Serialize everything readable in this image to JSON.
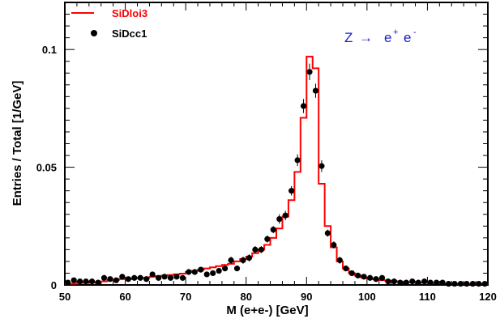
{
  "chart_data": {
    "type": "line",
    "xlabel": "M (e+e-) [GeV]",
    "ylabel": "Entries / Total  [1/GeV]",
    "xlim": [
      50,
      120
    ],
    "ylim": [
      0,
      0.12
    ],
    "x_ticks": [
      "50",
      "60",
      "70",
      "80",
      "90",
      "100",
      "110",
      "120"
    ],
    "y_ticks": [
      "0",
      "0.05",
      "0.1"
    ],
    "legend_position": "top-left",
    "annotation": {
      "base": "Z",
      "arrow": "→",
      "e1": "e",
      "e1_sup": "+",
      "e2": "e",
      "e2_sup": "-"
    },
    "series": [
      {
        "name": "SiDloi3",
        "style": "step-histogram",
        "color": "#ff0000",
        "bin_edges": [
          50,
          51,
          52,
          53,
          54,
          55,
          56,
          57,
          58,
          59,
          60,
          61,
          62,
          63,
          64,
          65,
          66,
          67,
          68,
          69,
          70,
          71,
          72,
          73,
          74,
          75,
          76,
          77,
          78,
          79,
          80,
          81,
          82,
          83,
          84,
          85,
          86,
          87,
          88,
          89,
          90,
          91,
          92,
          93,
          94,
          95,
          96,
          97,
          98,
          99,
          100,
          101,
          102,
          103,
          104,
          105,
          106,
          107,
          108,
          109,
          110,
          111,
          112,
          113,
          114,
          115,
          116,
          117,
          118,
          119,
          120
        ],
        "values": [
          0.0005,
          0.0005,
          0.0008,
          0.001,
          0.001,
          0.0012,
          0.0015,
          0.002,
          0.0022,
          0.0025,
          0.0025,
          0.0028,
          0.003,
          0.003,
          0.0035,
          0.0038,
          0.004,
          0.0042,
          0.0045,
          0.0048,
          0.0055,
          0.006,
          0.0065,
          0.007,
          0.0075,
          0.008,
          0.0085,
          0.009,
          0.01,
          0.011,
          0.012,
          0.0135,
          0.015,
          0.017,
          0.02,
          0.024,
          0.029,
          0.036,
          0.048,
          0.071,
          0.097,
          0.092,
          0.043,
          0.025,
          0.016,
          0.01,
          0.007,
          0.005,
          0.004,
          0.0032,
          0.0028,
          0.0024,
          0.002,
          0.0018,
          0.0016,
          0.0014,
          0.0012,
          0.0011,
          0.001,
          0.0009,
          0.0008,
          0.0008,
          0.0007,
          0.0007,
          0.0006,
          0.0006,
          0.0005,
          0.0005,
          0.0005,
          0.0005
        ]
      },
      {
        "name": "SiDcc1",
        "style": "points-with-errors",
        "color": "#000000",
        "x": [
          50.5,
          51.5,
          52.5,
          53.5,
          54.5,
          55.5,
          56.5,
          57.5,
          58.5,
          59.5,
          60.5,
          61.5,
          62.5,
          63.5,
          64.5,
          65.5,
          66.5,
          67.5,
          68.5,
          69.5,
          70.5,
          71.5,
          72.5,
          73.5,
          74.5,
          75.5,
          76.5,
          77.5,
          78.5,
          79.5,
          80.5,
          81.5,
          82.5,
          83.5,
          84.5,
          85.5,
          86.5,
          87.5,
          88.5,
          89.5,
          90.5,
          91.5,
          92.5,
          93.5,
          94.5,
          95.5,
          96.5,
          97.5,
          98.5,
          99.5,
          100.5,
          101.5,
          102.5,
          103.5,
          104.5,
          105.5,
          106.5,
          107.5,
          108.5,
          109.5,
          110.5,
          111.5,
          112.5,
          113.5,
          114.5,
          115.5,
          116.5,
          117.5,
          118.5,
          119.5
        ],
        "y": [
          0.001,
          0.002,
          0.0015,
          0.0015,
          0.0015,
          0.001,
          0.003,
          0.0025,
          0.002,
          0.0035,
          0.0025,
          0.003,
          0.003,
          0.0025,
          0.0045,
          0.003,
          0.0035,
          0.003,
          0.0035,
          0.003,
          0.0055,
          0.0055,
          0.0065,
          0.0045,
          0.005,
          0.006,
          0.007,
          0.0105,
          0.007,
          0.0105,
          0.0115,
          0.015,
          0.015,
          0.0195,
          0.0235,
          0.028,
          0.0295,
          0.04,
          0.053,
          0.076,
          0.0905,
          0.0825,
          0.0505,
          0.022,
          0.017,
          0.0105,
          0.007,
          0.005,
          0.004,
          0.0035,
          0.003,
          0.0025,
          0.003,
          0.0015,
          0.0015,
          0.001,
          0.001,
          0.0015,
          0.001,
          0.0015,
          0.001,
          0.001,
          0.001,
          0.0005,
          0.0005,
          0.0005,
          0.0005,
          0.0005,
          0.0005,
          0.0005
        ],
        "err": [
          0.001,
          0.001,
          0.001,
          0.001,
          0.001,
          0.001,
          0.001,
          0.001,
          0.001,
          0.001,
          0.001,
          0.001,
          0.001,
          0.001,
          0.001,
          0.001,
          0.001,
          0.001,
          0.001,
          0.001,
          0.001,
          0.001,
          0.001,
          0.001,
          0.001,
          0.001,
          0.001,
          0.0015,
          0.001,
          0.0015,
          0.0015,
          0.0015,
          0.0015,
          0.0015,
          0.0015,
          0.002,
          0.002,
          0.002,
          0.0025,
          0.003,
          0.0035,
          0.003,
          0.0025,
          0.0015,
          0.0015,
          0.0015,
          0.001,
          0.001,
          0.001,
          0.001,
          0.001,
          0.001,
          0.001,
          0.001,
          0.001,
          0.001,
          0.001,
          0.001,
          0.001,
          0.001,
          0.001,
          0.001,
          0.001,
          0.001,
          0.001,
          0.001,
          0.001,
          0.001,
          0.001,
          0.001
        ]
      }
    ]
  }
}
